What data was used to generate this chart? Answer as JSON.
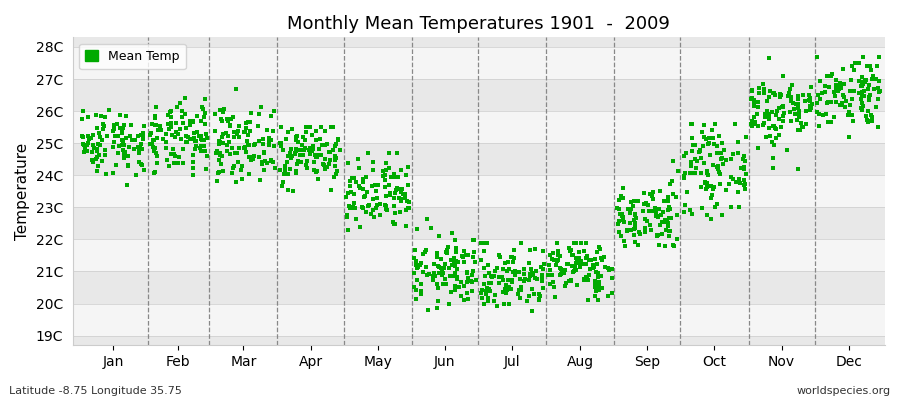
{
  "title": "Monthly Mean Temperatures 1901  -  2009",
  "ylabel": "Temperature",
  "xlabel_labels": [
    "Jan",
    "Feb",
    "Mar",
    "Apr",
    "May",
    "Jun",
    "Jul",
    "Aug",
    "Sep",
    "Oct",
    "Nov",
    "Dec"
  ],
  "ytick_labels": [
    "19C",
    "20C",
    "21C",
    "22C",
    "23C",
    "24C",
    "25C",
    "26C",
    "27C",
    "28C"
  ],
  "ytick_values": [
    19,
    20,
    21,
    22,
    23,
    24,
    25,
    26,
    27,
    28
  ],
  "ylim": [
    18.7,
    28.3
  ],
  "dot_color": "#00aa00",
  "dot_size": 5,
  "legend_label": "Mean Temp",
  "subtitle": "Latitude -8.75 Longitude 35.75",
  "watermark": "worldspecies.org",
  "bg_color": "#ffffff",
  "plot_bg_color1": "#e8e8e8",
  "plot_bg_color2": "#f5f5f5",
  "num_years": 109,
  "monthly_means": [
    25.05,
    25.1,
    25.0,
    24.7,
    23.3,
    21.0,
    20.8,
    21.1,
    22.7,
    24.2,
    26.0,
    26.6
  ],
  "monthly_stds": [
    0.52,
    0.55,
    0.55,
    0.5,
    0.6,
    0.55,
    0.52,
    0.45,
    0.55,
    0.65,
    0.6,
    0.58
  ],
  "monthly_min": [
    23.6,
    24.0,
    23.8,
    23.5,
    21.5,
    19.8,
    19.5,
    20.1,
    21.8,
    22.2,
    24.2,
    25.2
  ],
  "monthly_max": [
    26.4,
    26.6,
    26.7,
    25.5,
    24.7,
    22.7,
    21.9,
    21.9,
    24.6,
    25.6,
    27.7,
    27.7
  ],
  "month_day_starts": [
    0,
    31,
    59,
    90,
    120,
    151,
    181,
    212,
    243,
    273,
    304,
    334
  ],
  "month_day_lengths": [
    31,
    28,
    31,
    30,
    31,
    30,
    31,
    31,
    30,
    31,
    30,
    31
  ]
}
